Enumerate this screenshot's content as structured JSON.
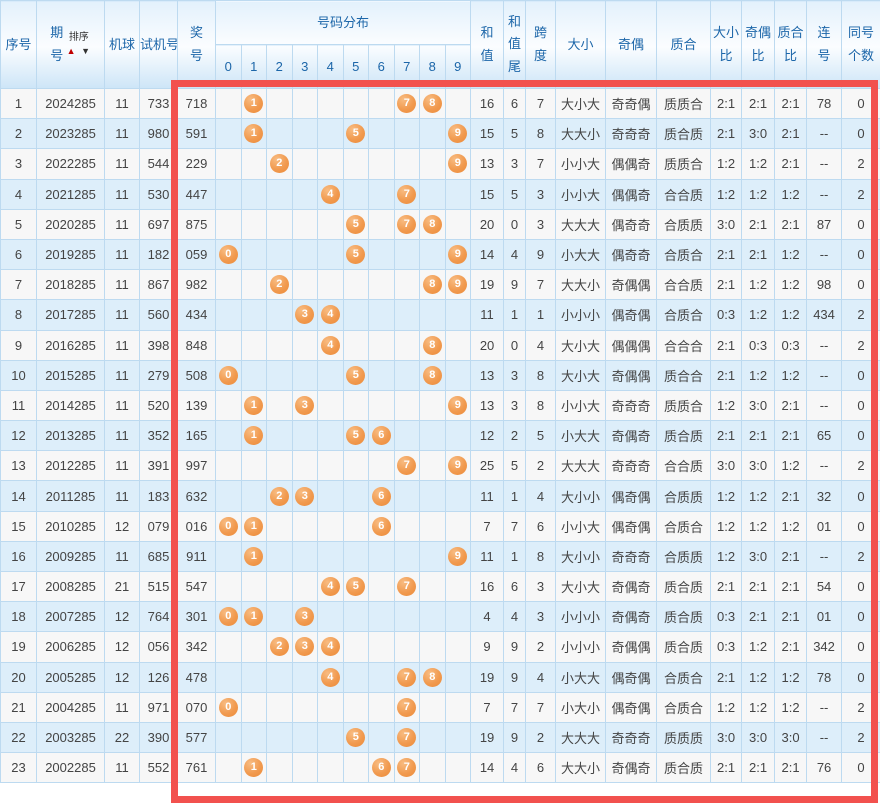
{
  "colors": {
    "frame_red": "#f2514e",
    "ball_orange": "#f09a4e",
    "header_blue": "#1c66a9"
  },
  "header": {
    "seq": "序号",
    "period": "期号",
    "sort_label": "排序",
    "sort_up": "▲",
    "sort_down": "▼",
    "machine": "机球",
    "test": "试机号",
    "win": "奖号",
    "distribution": "号码分布",
    "digits": [
      "0",
      "1",
      "2",
      "3",
      "4",
      "5",
      "6",
      "7",
      "8",
      "9"
    ],
    "sum": "和值",
    "tail": "和值尾",
    "span": "跨度",
    "size": "大小",
    "parity": "奇偶",
    "prime": "质合",
    "size_ratio": "大小比",
    "parity_ratio": "奇偶比",
    "prime_ratio": "质合比",
    "consec": "连号",
    "same": "同号个数"
  },
  "rows": [
    {
      "seq": "1",
      "period": "2024285",
      "machine": "11",
      "test": "733",
      "win": "718",
      "balls": [
        "1",
        "7",
        "8"
      ],
      "sum": "16",
      "tail": "6",
      "span": "7",
      "size": "大小大",
      "parity": "奇奇偶",
      "prime": "质质合",
      "size_ratio": "2:1",
      "parity_ratio": "2:1",
      "prime_ratio": "2:1",
      "consec": "78",
      "same": "0"
    },
    {
      "seq": "2",
      "period": "2023285",
      "machine": "11",
      "test": "980",
      "win": "591",
      "balls": [
        "1",
        "5",
        "9"
      ],
      "sum": "15",
      "tail": "5",
      "span": "8",
      "size": "大大小",
      "parity": "奇奇奇",
      "prime": "质合质",
      "size_ratio": "2:1",
      "parity_ratio": "3:0",
      "prime_ratio": "2:1",
      "consec": "--",
      "same": "0"
    },
    {
      "seq": "3",
      "period": "2022285",
      "machine": "11",
      "test": "544",
      "win": "229",
      "balls": [
        "2",
        "9"
      ],
      "sum": "13",
      "tail": "3",
      "span": "7",
      "size": "小小大",
      "parity": "偶偶奇",
      "prime": "质质合",
      "size_ratio": "1:2",
      "parity_ratio": "1:2",
      "prime_ratio": "2:1",
      "consec": "--",
      "same": "2"
    },
    {
      "seq": "4",
      "period": "2021285",
      "machine": "11",
      "test": "530",
      "win": "447",
      "balls": [
        "4",
        "7"
      ],
      "sum": "15",
      "tail": "5",
      "span": "3",
      "size": "小小大",
      "parity": "偶偶奇",
      "prime": "合合质",
      "size_ratio": "1:2",
      "parity_ratio": "1:2",
      "prime_ratio": "1:2",
      "consec": "--",
      "same": "2"
    },
    {
      "seq": "5",
      "period": "2020285",
      "machine": "11",
      "test": "697",
      "win": "875",
      "balls": [
        "5",
        "7",
        "8"
      ],
      "sum": "20",
      "tail": "0",
      "span": "3",
      "size": "大大大",
      "parity": "偶奇奇",
      "prime": "合质质",
      "size_ratio": "3:0",
      "parity_ratio": "2:1",
      "prime_ratio": "2:1",
      "consec": "87",
      "same": "0"
    },
    {
      "seq": "6",
      "period": "2019285",
      "machine": "11",
      "test": "182",
      "win": "059",
      "balls": [
        "0",
        "5",
        "9"
      ],
      "sum": "14",
      "tail": "4",
      "span": "9",
      "size": "小大大",
      "parity": "偶奇奇",
      "prime": "合质合",
      "size_ratio": "2:1",
      "parity_ratio": "2:1",
      "prime_ratio": "1:2",
      "consec": "--",
      "same": "0"
    },
    {
      "seq": "7",
      "period": "2018285",
      "machine": "11",
      "test": "867",
      "win": "982",
      "balls": [
        "2",
        "8",
        "9"
      ],
      "sum": "19",
      "tail": "9",
      "span": "7",
      "size": "大大小",
      "parity": "奇偶偶",
      "prime": "合合质",
      "size_ratio": "2:1",
      "parity_ratio": "1:2",
      "prime_ratio": "1:2",
      "consec": "98",
      "same": "0"
    },
    {
      "seq": "8",
      "period": "2017285",
      "machine": "11",
      "test": "560",
      "win": "434",
      "balls": [
        "3",
        "4"
      ],
      "sum": "11",
      "tail": "1",
      "span": "1",
      "size": "小小小",
      "parity": "偶奇偶",
      "prime": "合质合",
      "size_ratio": "0:3",
      "parity_ratio": "1:2",
      "prime_ratio": "1:2",
      "consec": "434",
      "same": "2"
    },
    {
      "seq": "9",
      "period": "2016285",
      "machine": "11",
      "test": "398",
      "win": "848",
      "balls": [
        "4",
        "8"
      ],
      "sum": "20",
      "tail": "0",
      "span": "4",
      "size": "大小大",
      "parity": "偶偶偶",
      "prime": "合合合",
      "size_ratio": "2:1",
      "parity_ratio": "0:3",
      "prime_ratio": "0:3",
      "consec": "--",
      "same": "2"
    },
    {
      "seq": "10",
      "period": "2015285",
      "machine": "11",
      "test": "279",
      "win": "508",
      "balls": [
        "0",
        "5",
        "8"
      ],
      "sum": "13",
      "tail": "3",
      "span": "8",
      "size": "大小大",
      "parity": "奇偶偶",
      "prime": "质合合",
      "size_ratio": "2:1",
      "parity_ratio": "1:2",
      "prime_ratio": "1:2",
      "consec": "--",
      "same": "0"
    },
    {
      "seq": "11",
      "period": "2014285",
      "machine": "11",
      "test": "520",
      "win": "139",
      "balls": [
        "1",
        "3",
        "9"
      ],
      "sum": "13",
      "tail": "3",
      "span": "8",
      "size": "小小大",
      "parity": "奇奇奇",
      "prime": "质质合",
      "size_ratio": "1:2",
      "parity_ratio": "3:0",
      "prime_ratio": "2:1",
      "consec": "--",
      "same": "0"
    },
    {
      "seq": "12",
      "period": "2013285",
      "machine": "11",
      "test": "352",
      "win": "165",
      "balls": [
        "1",
        "5",
        "6"
      ],
      "sum": "12",
      "tail": "2",
      "span": "5",
      "size": "小大大",
      "parity": "奇偶奇",
      "prime": "质合质",
      "size_ratio": "2:1",
      "parity_ratio": "2:1",
      "prime_ratio": "2:1",
      "consec": "65",
      "same": "0"
    },
    {
      "seq": "13",
      "period": "2012285",
      "machine": "11",
      "test": "391",
      "win": "997",
      "balls": [
        "7",
        "9"
      ],
      "sum": "25",
      "tail": "5",
      "span": "2",
      "size": "大大大",
      "parity": "奇奇奇",
      "prime": "合合质",
      "size_ratio": "3:0",
      "parity_ratio": "3:0",
      "prime_ratio": "1:2",
      "consec": "--",
      "same": "2"
    },
    {
      "seq": "14",
      "period": "2011285",
      "machine": "11",
      "test": "183",
      "win": "632",
      "balls": [
        "2",
        "3",
        "6"
      ],
      "sum": "11",
      "tail": "1",
      "span": "4",
      "size": "大小小",
      "parity": "偶奇偶",
      "prime": "合质质",
      "size_ratio": "1:2",
      "parity_ratio": "1:2",
      "prime_ratio": "2:1",
      "consec": "32",
      "same": "0"
    },
    {
      "seq": "15",
      "period": "2010285",
      "machine": "12",
      "test": "079",
      "win": "016",
      "balls": [
        "0",
        "1",
        "6"
      ],
      "sum": "7",
      "tail": "7",
      "span": "6",
      "size": "小小大",
      "parity": "偶奇偶",
      "prime": "合质合",
      "size_ratio": "1:2",
      "parity_ratio": "1:2",
      "prime_ratio": "1:2",
      "consec": "01",
      "same": "0"
    },
    {
      "seq": "16",
      "period": "2009285",
      "machine": "11",
      "test": "685",
      "win": "911",
      "balls": [
        "1",
        "9"
      ],
      "sum": "11",
      "tail": "1",
      "span": "8",
      "size": "大小小",
      "parity": "奇奇奇",
      "prime": "合质质",
      "size_ratio": "1:2",
      "parity_ratio": "3:0",
      "prime_ratio": "2:1",
      "consec": "--",
      "same": "2"
    },
    {
      "seq": "17",
      "period": "2008285",
      "machine": "21",
      "test": "515",
      "win": "547",
      "balls": [
        "4",
        "5",
        "7"
      ],
      "sum": "16",
      "tail": "6",
      "span": "3",
      "size": "大小大",
      "parity": "奇偶奇",
      "prime": "质合质",
      "size_ratio": "2:1",
      "parity_ratio": "2:1",
      "prime_ratio": "2:1",
      "consec": "54",
      "same": "0"
    },
    {
      "seq": "18",
      "period": "2007285",
      "machine": "12",
      "test": "764",
      "win": "301",
      "balls": [
        "0",
        "1",
        "3"
      ],
      "sum": "4",
      "tail": "4",
      "span": "3",
      "size": "小小小",
      "parity": "奇偶奇",
      "prime": "质合质",
      "size_ratio": "0:3",
      "parity_ratio": "2:1",
      "prime_ratio": "2:1",
      "consec": "01",
      "same": "0"
    },
    {
      "seq": "19",
      "period": "2006285",
      "machine": "12",
      "test": "056",
      "win": "342",
      "balls": [
        "2",
        "3",
        "4"
      ],
      "sum": "9",
      "tail": "9",
      "span": "2",
      "size": "小小小",
      "parity": "奇偶偶",
      "prime": "质合质",
      "size_ratio": "0:3",
      "parity_ratio": "1:2",
      "prime_ratio": "2:1",
      "consec": "342",
      "same": "0"
    },
    {
      "seq": "20",
      "period": "2005285",
      "machine": "12",
      "test": "126",
      "win": "478",
      "balls": [
        "4",
        "7",
        "8"
      ],
      "sum": "19",
      "tail": "9",
      "span": "4",
      "size": "小大大",
      "parity": "偶奇偶",
      "prime": "合质合",
      "size_ratio": "2:1",
      "parity_ratio": "1:2",
      "prime_ratio": "1:2",
      "consec": "78",
      "same": "0"
    },
    {
      "seq": "21",
      "period": "2004285",
      "machine": "11",
      "test": "971",
      "win": "070",
      "balls": [
        "0",
        "7"
      ],
      "sum": "7",
      "tail": "7",
      "span": "7",
      "size": "小大小",
      "parity": "偶奇偶",
      "prime": "合质合",
      "size_ratio": "1:2",
      "parity_ratio": "1:2",
      "prime_ratio": "1:2",
      "consec": "--",
      "same": "2"
    },
    {
      "seq": "22",
      "period": "2003285",
      "machine": "22",
      "test": "390",
      "win": "577",
      "balls": [
        "5",
        "7"
      ],
      "sum": "19",
      "tail": "9",
      "span": "2",
      "size": "大大大",
      "parity": "奇奇奇",
      "prime": "质质质",
      "size_ratio": "3:0",
      "parity_ratio": "3:0",
      "prime_ratio": "3:0",
      "consec": "--",
      "same": "2"
    },
    {
      "seq": "23",
      "period": "2002285",
      "machine": "11",
      "test": "552",
      "win": "761",
      "balls": [
        "1",
        "6",
        "7"
      ],
      "sum": "14",
      "tail": "4",
      "span": "6",
      "size": "大大小",
      "parity": "奇偶奇",
      "prime": "质合质",
      "size_ratio": "2:1",
      "parity_ratio": "2:1",
      "prime_ratio": "2:1",
      "consec": "76",
      "same": "0"
    }
  ]
}
